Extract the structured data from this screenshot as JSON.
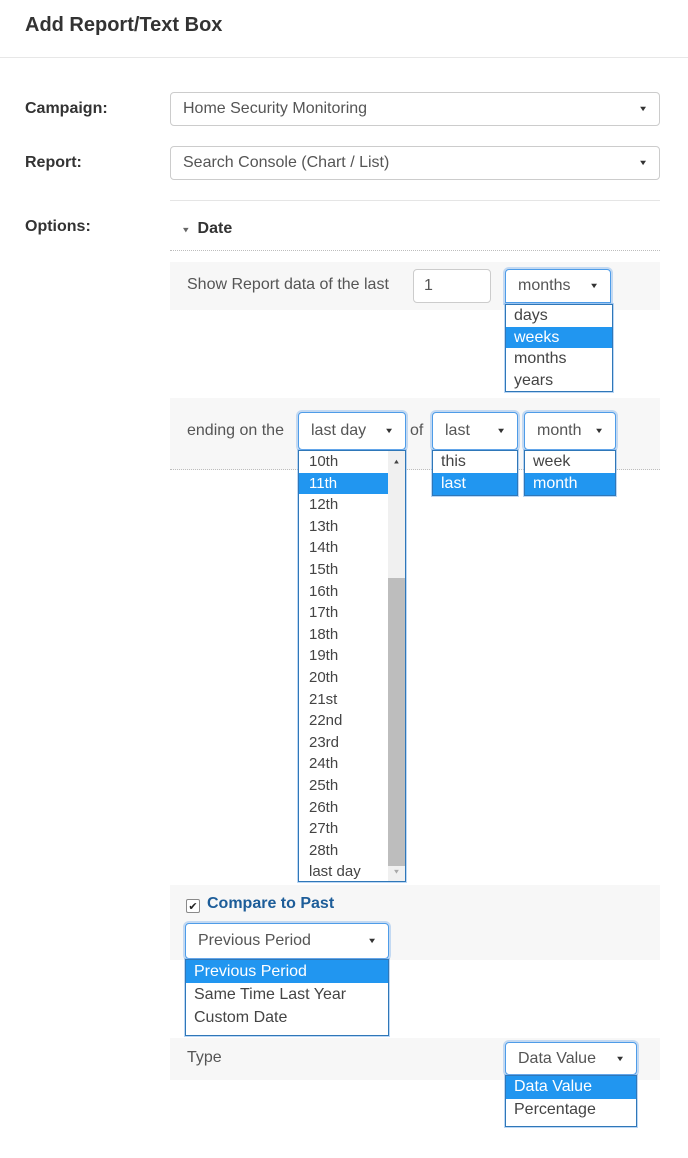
{
  "title": "Add Report/Text Box",
  "icons": {
    "dropdown_arrow": "▼",
    "section_arrow": "▾",
    "scroll_up": "▲",
    "scroll_down": "▼",
    "checkmark": "✔"
  },
  "colors": {
    "highlight": "#2196f0",
    "compare_label": "#1d5d99"
  },
  "campaign": {
    "label": "Campaign:",
    "value": "Home Security Monitoring"
  },
  "report": {
    "label": "Report:",
    "value": "Search Console (Chart / List)"
  },
  "options": {
    "label": "Options:"
  },
  "date": {
    "section_title": "Date",
    "show_row": {
      "text": "Show Report data of the last",
      "count": "1",
      "unit": {
        "value": "months",
        "options": [
          "days",
          "weeks",
          "months",
          "years"
        ],
        "highlighted": "weeks"
      }
    },
    "ending_row": {
      "prefix": "ending on the",
      "of": "of",
      "day": {
        "value": "last day",
        "options": [
          "10th",
          "11th",
          "12th",
          "13th",
          "14th",
          "15th",
          "16th",
          "17th",
          "18th",
          "19th",
          "20th",
          "21st",
          "22nd",
          "23rd",
          "24th",
          "25th",
          "26th",
          "27th",
          "28th",
          "last day"
        ],
        "highlighted": "11th"
      },
      "relative": {
        "value": "last",
        "options": [
          "this",
          "last"
        ],
        "highlighted": "last"
      },
      "period": {
        "value": "month",
        "options": [
          "week",
          "month"
        ],
        "highlighted": "month"
      }
    },
    "compare": {
      "checked": true,
      "label": "Compare to Past",
      "select": {
        "value": "Previous Period",
        "options": [
          "Previous Period",
          "Same Time Last Year",
          "Custom Date"
        ],
        "highlighted": "Previous Period"
      }
    },
    "type_row": {
      "label": "Type",
      "select": {
        "value": "Data Value",
        "options": [
          "Data Value",
          "Percentage"
        ],
        "highlighted": "Data Value"
      }
    }
  }
}
